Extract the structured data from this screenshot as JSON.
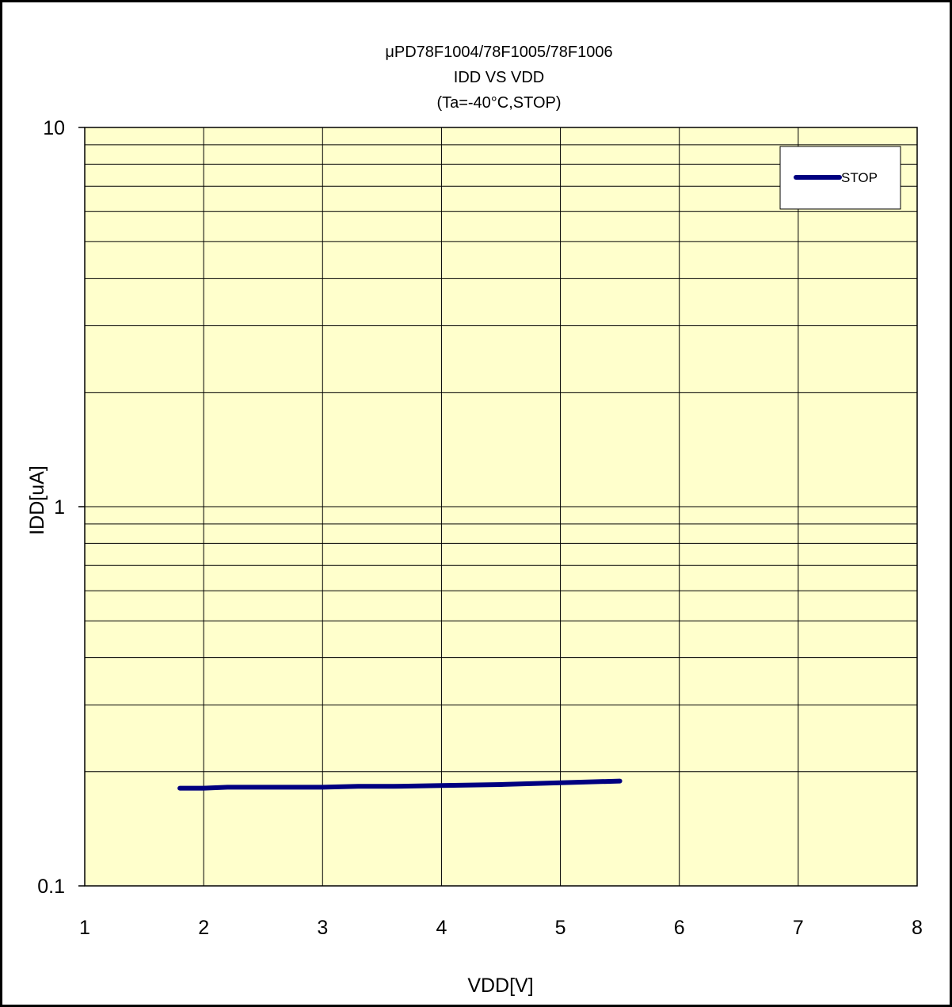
{
  "colors": {
    "plot_background": "#ffffcc",
    "series_line": "#000080",
    "grid": "#000000",
    "frame": "#000000"
  },
  "chart_data": {
    "type": "line",
    "title_lines": [
      "μPD78F1004/78F1005/78F1006",
      "IDD VS VDD",
      "(Ta=-40°C,STOP)"
    ],
    "xlabel": "VDD[V]",
    "ylabel": "IDD[uA]",
    "xlim": [
      1,
      8
    ],
    "ylim": [
      0.1,
      10
    ],
    "y_scale": "log",
    "grid": true,
    "x_ticks": [
      "1",
      "2",
      "3",
      "4",
      "5",
      "6",
      "7",
      "8"
    ],
    "y_ticks": [
      {
        "value": 10,
        "label": "10"
      },
      {
        "value": 1,
        "label": "1"
      },
      {
        "value": 0.1,
        "label": "0.1"
      }
    ],
    "legend": {
      "position": "top-right",
      "entries": [
        "STOP"
      ]
    },
    "series": [
      {
        "name": "STOP",
        "x": [
          1.8,
          2.0,
          2.2,
          2.5,
          3.0,
          3.3,
          3.6,
          4.0,
          4.5,
          5.0,
          5.5
        ],
        "y": [
          0.181,
          0.181,
          0.182,
          0.182,
          0.182,
          0.183,
          0.183,
          0.184,
          0.185,
          0.187,
          0.189
        ]
      }
    ]
  }
}
